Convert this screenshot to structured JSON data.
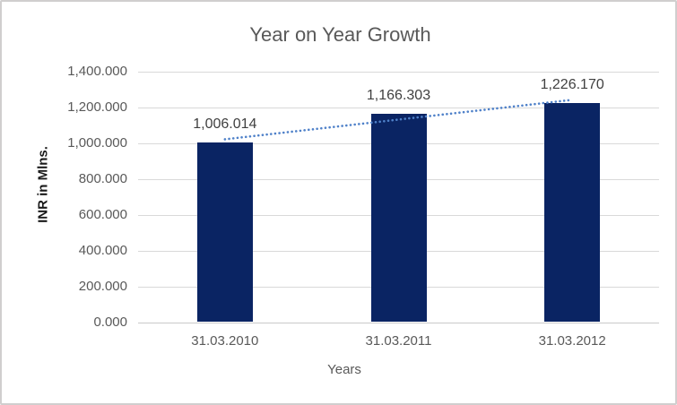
{
  "chart": {
    "title": "Year on Year Growth",
    "y_axis_title": "INR in Mlns.",
    "x_axis_title": "Years"
  },
  "chart_data": {
    "type": "bar",
    "title": "Year on Year Growth",
    "xlabel": "Years",
    "ylabel": "INR in Mlns.",
    "categories": [
      "31.03.2010",
      "31.03.2011",
      "31.03.2012"
    ],
    "values": [
      1006.014,
      1166.303,
      1226.17
    ],
    "value_labels": [
      "1,006.014",
      "1,166.303",
      "1,226.170"
    ],
    "ylim": [
      0,
      1400
    ],
    "ytick_values": [
      0,
      200,
      400,
      600,
      800,
      1000,
      1200,
      1400
    ],
    "ytick_labels": [
      "0.000",
      "200.000",
      "400.000",
      "600.000",
      "800.000",
      "1,000.000",
      "1,200.000",
      "1,400.000"
    ],
    "grid": true,
    "legend": false,
    "bar_color": "#0a2463",
    "trendline": {
      "kind": "linear",
      "style": "round-dot",
      "color": "#4f81c9"
    },
    "colors": {
      "title_text": "#595959",
      "tick_text": "#595959",
      "data_label_text": "#404040",
      "gridline": "#d9d9d9",
      "axis_line": "#c9c9c9",
      "chart_border": "#d0cece"
    }
  }
}
